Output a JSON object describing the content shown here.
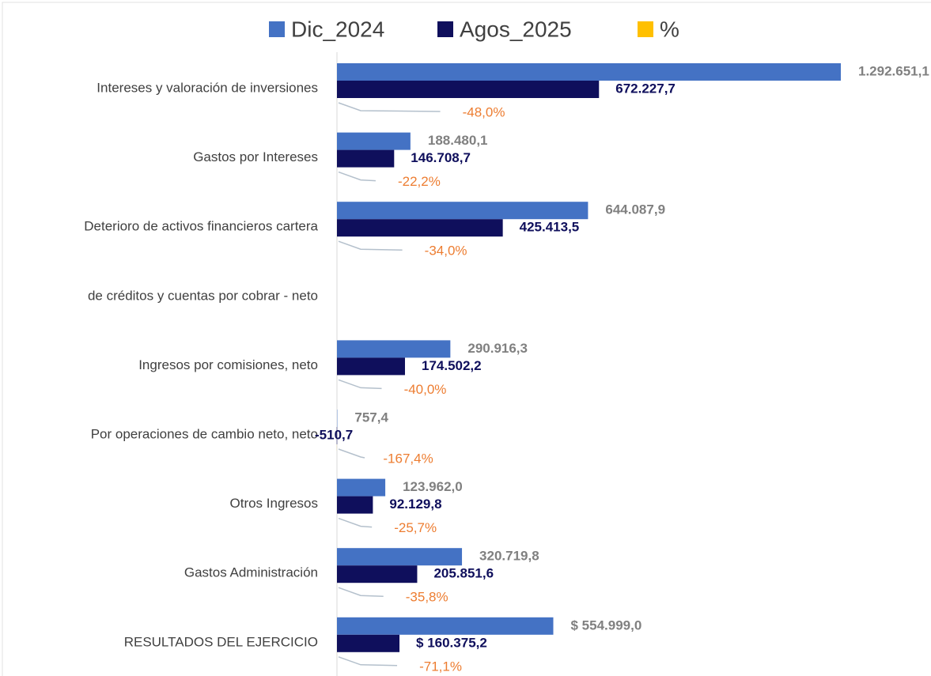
{
  "chart_data": {
    "type": "hbar",
    "categories": [
      "Intereses y valoración de inversiones",
      "Gastos por Intereses",
      "Deterioro de activos financieros cartera",
      "de créditos y cuentas por cobrar - neto",
      "Ingresos por comisiones, neto",
      "Por operaciones de cambio neto, neto",
      "Otros Ingresos",
      "Gastos Administración",
      "RESULTADOS DEL EJERCICIO"
    ],
    "series": [
      {
        "name": "Dic_2024",
        "color": "#4472c4",
        "values": [
          1292651.1,
          188480.1,
          644087.9,
          null,
          290916.3,
          757.4,
          123962.0,
          320719.8,
          554999.0
        ],
        "value_labels": [
          "1.292.651,1",
          "188.480,1",
          "644.087,9",
          null,
          "290.916,3",
          "757,4",
          "123.962,0",
          "320.719,8",
          "$ 554.999,0"
        ]
      },
      {
        "name": "Agos_2025",
        "color": "#0f0f5c",
        "values": [
          672227.7,
          146708.7,
          425413.5,
          null,
          174502.2,
          -510.7,
          92129.8,
          205851.6,
          160375.2
        ],
        "value_labels": [
          "672.227,7",
          "146.708,7",
          "425.413,5",
          null,
          "174.502,2",
          "-510,7",
          "92.129,8",
          "205.851,6",
          "$ 160.375,2"
        ]
      },
      {
        "name": "%",
        "color": "#ffc000",
        "values": [
          -48.0,
          -22.2,
          -34.0,
          null,
          -40.0,
          -167.4,
          -25.7,
          -35.8,
          -71.1
        ],
        "value_labels": [
          "-48,0%",
          "-22,2%",
          "-34,0%",
          null,
          "-40,0%",
          "-167,4%",
          "-25,7%",
          "-35,8%",
          "-71,1%"
        ]
      }
    ],
    "xlim": [
      0,
      1300000
    ],
    "legend": "top"
  }
}
